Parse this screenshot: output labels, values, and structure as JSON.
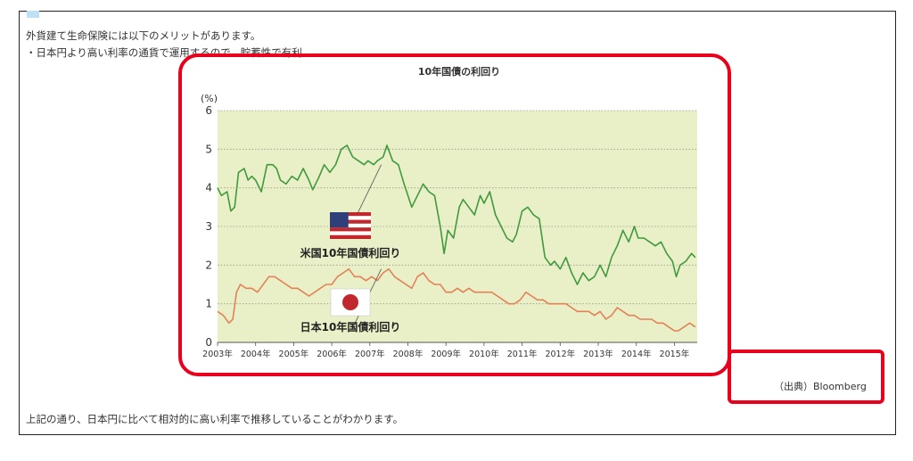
{
  "page": {
    "intro_line1": "外貨建て生命保険には以下のメリットがあります。",
    "intro_line2": "・日本円より高い利率の通貨で運用するので、貯蓄性で有利",
    "conclusion": "上記の通り、日本円に比べて相対的に高い利率で推移していることがわかります。",
    "source": "（出典）Bloomberg",
    "highlight_color": "#e8001c"
  },
  "chart_data": {
    "type": "line",
    "title": "10年国債の利回り",
    "ylabel": "(%)",
    "xlabel": "",
    "ylim": [
      0,
      6
    ],
    "yticks": [
      "0",
      "1",
      "2",
      "3",
      "4",
      "5",
      "6"
    ],
    "xticks": [
      "2003年",
      "2004年",
      "2005年",
      "2006年",
      "2007年",
      "2008年",
      "2009年",
      "2010年",
      "2011年",
      "2012年",
      "2013年",
      "2014年",
      "2015年"
    ],
    "grid": true,
    "background": "#e9efc6",
    "series": [
      {
        "name": "米国10年国債利回り",
        "color": "#3f9a3f",
        "flag": "us-flag",
        "points": [
          [
            2003.0,
            4.0
          ],
          [
            2003.1,
            3.8
          ],
          [
            2003.25,
            3.9
          ],
          [
            2003.35,
            3.4
          ],
          [
            2003.45,
            3.5
          ],
          [
            2003.55,
            4.4
          ],
          [
            2003.7,
            4.5
          ],
          [
            2003.8,
            4.2
          ],
          [
            2003.9,
            4.3
          ],
          [
            2004.0,
            4.2
          ],
          [
            2004.15,
            3.9
          ],
          [
            2004.3,
            4.6
          ],
          [
            2004.45,
            4.6
          ],
          [
            2004.55,
            4.5
          ],
          [
            2004.65,
            4.2
          ],
          [
            2004.8,
            4.1
          ],
          [
            2004.95,
            4.3
          ],
          [
            2005.1,
            4.2
          ],
          [
            2005.25,
            4.5
          ],
          [
            2005.4,
            4.2
          ],
          [
            2005.5,
            3.95
          ],
          [
            2005.65,
            4.25
          ],
          [
            2005.8,
            4.6
          ],
          [
            2005.95,
            4.4
          ],
          [
            2006.1,
            4.6
          ],
          [
            2006.25,
            5.0
          ],
          [
            2006.4,
            5.1
          ],
          [
            2006.55,
            4.8
          ],
          [
            2006.7,
            4.7
          ],
          [
            2006.85,
            4.6
          ],
          [
            2006.95,
            4.7
          ],
          [
            2007.1,
            4.6
          ],
          [
            2007.2,
            4.7
          ],
          [
            2007.35,
            4.8
          ],
          [
            2007.45,
            5.1
          ],
          [
            2007.6,
            4.7
          ],
          [
            2007.75,
            4.6
          ],
          [
            2007.9,
            4.1
          ],
          [
            2008.0,
            3.8
          ],
          [
            2008.1,
            3.5
          ],
          [
            2008.25,
            3.8
          ],
          [
            2008.4,
            4.1
          ],
          [
            2008.55,
            3.9
          ],
          [
            2008.7,
            3.8
          ],
          [
            2008.85,
            3.0
          ],
          [
            2008.95,
            2.3
          ],
          [
            2009.05,
            2.9
          ],
          [
            2009.2,
            2.7
          ],
          [
            2009.35,
            3.5
          ],
          [
            2009.45,
            3.7
          ],
          [
            2009.6,
            3.5
          ],
          [
            2009.75,
            3.3
          ],
          [
            2009.9,
            3.8
          ],
          [
            2010.0,
            3.6
          ],
          [
            2010.15,
            3.9
          ],
          [
            2010.3,
            3.3
          ],
          [
            2010.45,
            3.0
          ],
          [
            2010.6,
            2.7
          ],
          [
            2010.75,
            2.6
          ],
          [
            2010.85,
            2.8
          ],
          [
            2011.0,
            3.4
          ],
          [
            2011.15,
            3.5
          ],
          [
            2011.3,
            3.3
          ],
          [
            2011.45,
            3.2
          ],
          [
            2011.6,
            2.2
          ],
          [
            2011.75,
            2.0
          ],
          [
            2011.85,
            2.1
          ],
          [
            2012.0,
            1.9
          ],
          [
            2012.15,
            2.2
          ],
          [
            2012.3,
            1.8
          ],
          [
            2012.45,
            1.5
          ],
          [
            2012.6,
            1.8
          ],
          [
            2012.75,
            1.6
          ],
          [
            2012.9,
            1.7
          ],
          [
            2013.05,
            2.0
          ],
          [
            2013.2,
            1.7
          ],
          [
            2013.35,
            2.2
          ],
          [
            2013.5,
            2.5
          ],
          [
            2013.65,
            2.9
          ],
          [
            2013.8,
            2.6
          ],
          [
            2013.95,
            3.0
          ],
          [
            2014.05,
            2.7
          ],
          [
            2014.2,
            2.7
          ],
          [
            2014.35,
            2.6
          ],
          [
            2014.5,
            2.5
          ],
          [
            2014.65,
            2.6
          ],
          [
            2014.8,
            2.3
          ],
          [
            2014.95,
            2.1
          ],
          [
            2015.05,
            1.7
          ],
          [
            2015.15,
            2.0
          ],
          [
            2015.3,
            2.1
          ],
          [
            2015.45,
            2.3
          ],
          [
            2015.55,
            2.2
          ]
        ]
      },
      {
        "name": "日本10年国債利回り",
        "color": "#e2825a",
        "flag": "japan-flag",
        "points": [
          [
            2003.0,
            0.8
          ],
          [
            2003.15,
            0.7
          ],
          [
            2003.3,
            0.5
          ],
          [
            2003.4,
            0.6
          ],
          [
            2003.5,
            1.3
          ],
          [
            2003.6,
            1.5
          ],
          [
            2003.75,
            1.4
          ],
          [
            2003.9,
            1.4
          ],
          [
            2004.05,
            1.3
          ],
          [
            2004.2,
            1.5
          ],
          [
            2004.35,
            1.7
          ],
          [
            2004.5,
            1.7
          ],
          [
            2004.65,
            1.6
          ],
          [
            2004.8,
            1.5
          ],
          [
            2004.95,
            1.4
          ],
          [
            2005.1,
            1.4
          ],
          [
            2005.25,
            1.3
          ],
          [
            2005.4,
            1.2
          ],
          [
            2005.55,
            1.3
          ],
          [
            2005.7,
            1.4
          ],
          [
            2005.85,
            1.5
          ],
          [
            2006.0,
            1.5
          ],
          [
            2006.15,
            1.7
          ],
          [
            2006.3,
            1.8
          ],
          [
            2006.45,
            1.9
          ],
          [
            2006.6,
            1.7
          ],
          [
            2006.75,
            1.7
          ],
          [
            2006.9,
            1.6
          ],
          [
            2007.05,
            1.7
          ],
          [
            2007.2,
            1.6
          ],
          [
            2007.35,
            1.8
          ],
          [
            2007.5,
            1.9
          ],
          [
            2007.65,
            1.7
          ],
          [
            2007.8,
            1.6
          ],
          [
            2007.95,
            1.5
          ],
          [
            2008.1,
            1.4
          ],
          [
            2008.25,
            1.7
          ],
          [
            2008.4,
            1.8
          ],
          [
            2008.55,
            1.6
          ],
          [
            2008.7,
            1.5
          ],
          [
            2008.85,
            1.5
          ],
          [
            2009.0,
            1.3
          ],
          [
            2009.15,
            1.3
          ],
          [
            2009.3,
            1.4
          ],
          [
            2009.45,
            1.3
          ],
          [
            2009.6,
            1.4
          ],
          [
            2009.75,
            1.3
          ],
          [
            2009.9,
            1.3
          ],
          [
            2010.05,
            1.3
          ],
          [
            2010.2,
            1.3
          ],
          [
            2010.35,
            1.2
          ],
          [
            2010.5,
            1.1
          ],
          [
            2010.65,
            1.0
          ],
          [
            2010.8,
            1.0
          ],
          [
            2010.95,
            1.1
          ],
          [
            2011.1,
            1.3
          ],
          [
            2011.25,
            1.2
          ],
          [
            2011.4,
            1.1
          ],
          [
            2011.55,
            1.1
          ],
          [
            2011.7,
            1.0
          ],
          [
            2011.85,
            1.0
          ],
          [
            2012.0,
            1.0
          ],
          [
            2012.15,
            1.0
          ],
          [
            2012.3,
            0.9
          ],
          [
            2012.45,
            0.8
          ],
          [
            2012.6,
            0.8
          ],
          [
            2012.75,
            0.8
          ],
          [
            2012.9,
            0.7
          ],
          [
            2013.05,
            0.8
          ],
          [
            2013.2,
            0.6
          ],
          [
            2013.35,
            0.7
          ],
          [
            2013.5,
            0.9
          ],
          [
            2013.65,
            0.8
          ],
          [
            2013.8,
            0.7
          ],
          [
            2013.95,
            0.7
          ],
          [
            2014.1,
            0.6
          ],
          [
            2014.25,
            0.6
          ],
          [
            2014.4,
            0.6
          ],
          [
            2014.55,
            0.5
          ],
          [
            2014.7,
            0.5
          ],
          [
            2014.85,
            0.4
          ],
          [
            2015.0,
            0.3
          ],
          [
            2015.1,
            0.3
          ],
          [
            2015.25,
            0.4
          ],
          [
            2015.4,
            0.5
          ],
          [
            2015.55,
            0.4
          ]
        ]
      }
    ]
  }
}
